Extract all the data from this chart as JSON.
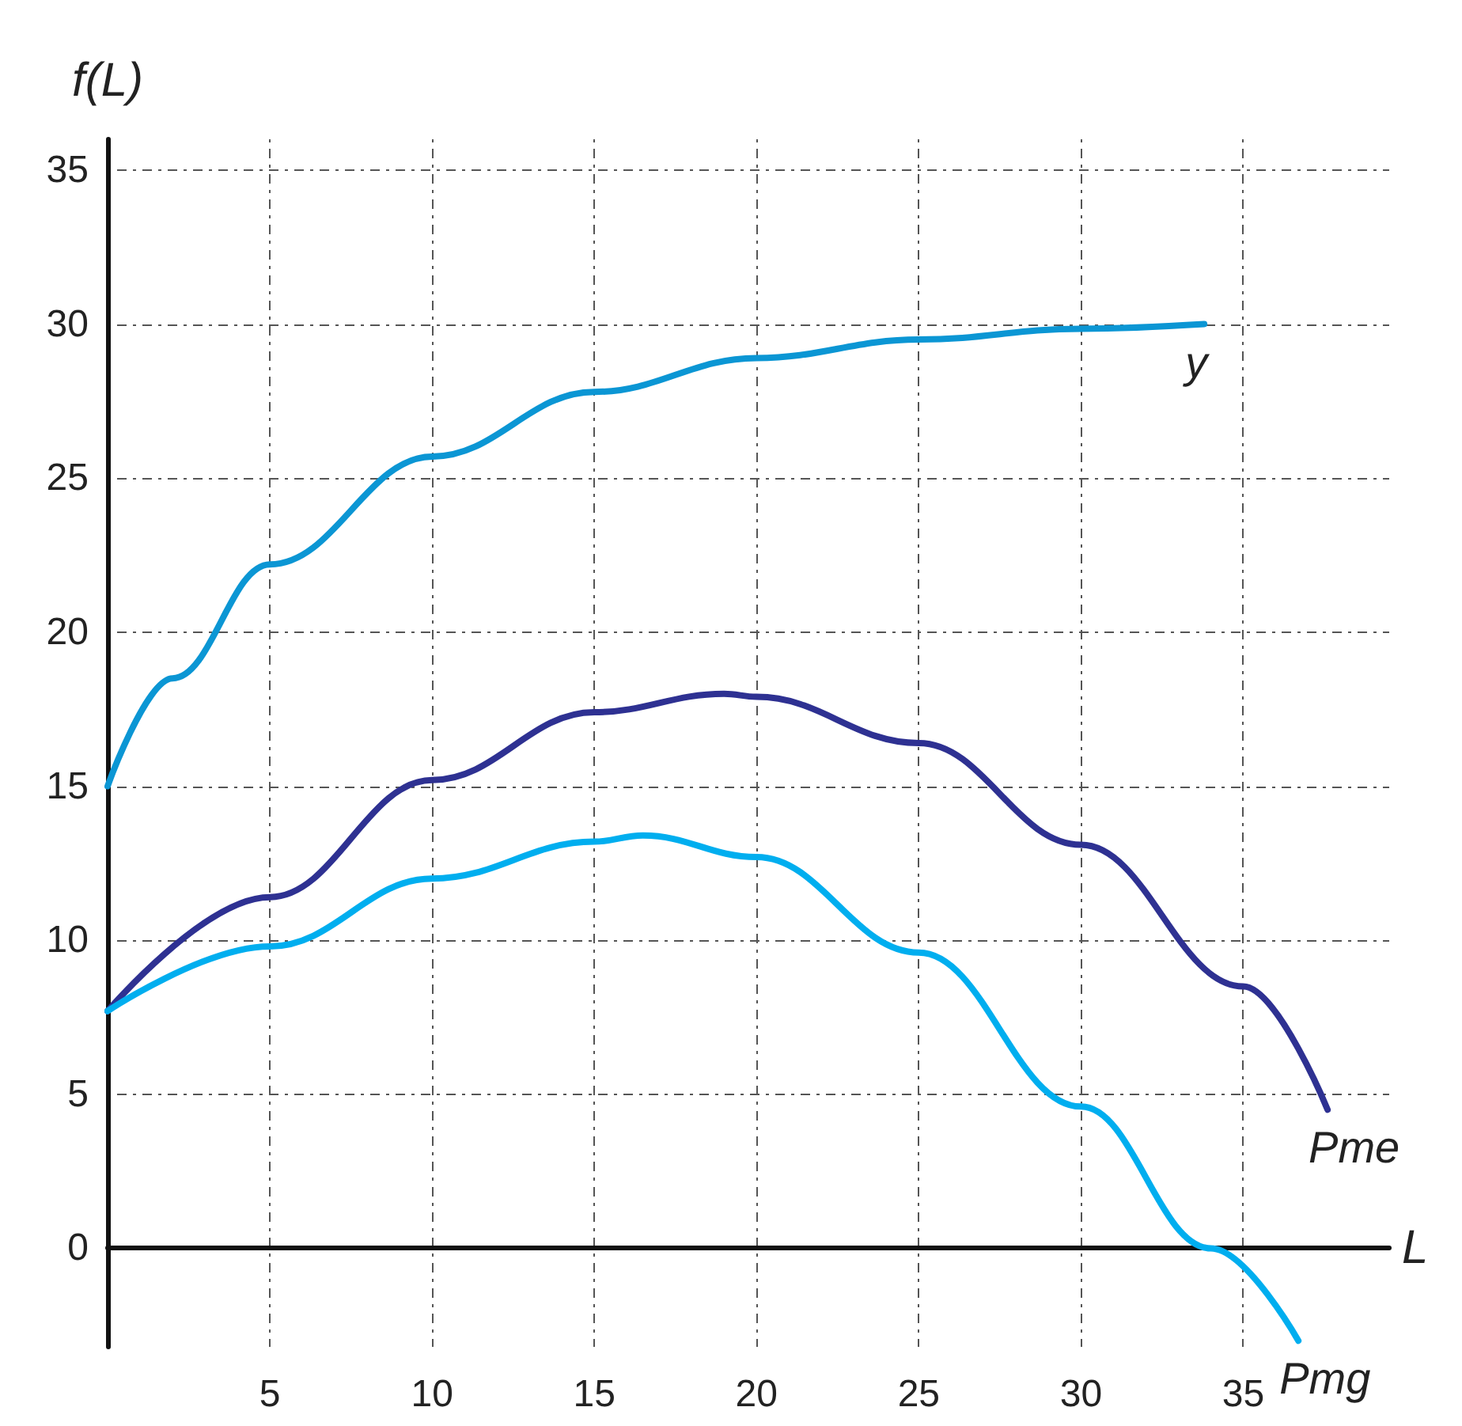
{
  "chart_data": {
    "type": "line",
    "xlabel": "L",
    "ylabel": "f(L)",
    "xlim": [
      0,
      39.5
    ],
    "ylim": [
      -3.2,
      36
    ],
    "xticks": [
      5,
      10,
      15,
      20,
      25,
      30,
      35
    ],
    "yticks": [
      0,
      5,
      10,
      15,
      20,
      25,
      30,
      35
    ],
    "grid": true,
    "legend": false,
    "marker": "none",
    "line_style": "solid",
    "series": [
      {
        "name": "y",
        "color": "#0b96d4",
        "x": [
          0,
          2,
          5,
          10,
          15,
          20,
          25,
          30,
          33.8
        ],
        "values": [
          15,
          18.5,
          22.2,
          25.7,
          27.8,
          28.9,
          29.5,
          29.85,
          30
        ]
      },
      {
        "name": "Pme",
        "color": "#2e3192",
        "x": [
          0,
          5,
          10,
          15,
          19,
          20,
          25,
          30,
          35,
          37.6
        ],
        "values": [
          7.7,
          11.4,
          15.2,
          17.4,
          18,
          17.9,
          16.4,
          13.1,
          8.5,
          4.5
        ]
      },
      {
        "name": "Pmg",
        "color": "#00aeef",
        "x": [
          0,
          5,
          10,
          15,
          16.5,
          20,
          25,
          30,
          34,
          36.7
        ],
        "values": [
          7.7,
          9.8,
          12,
          13.2,
          13.4,
          12.7,
          9.6,
          4.6,
          0,
          -3
        ]
      }
    ]
  }
}
